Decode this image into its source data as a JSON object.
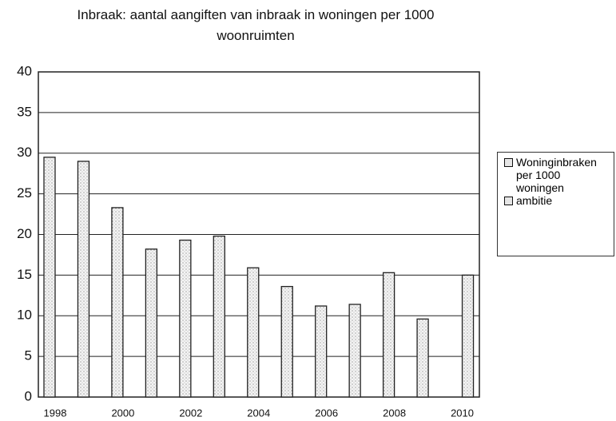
{
  "chart_data": {
    "type": "bar",
    "title": "Inbraak: aantal aangiften van inbraak in woningen per 1000 woonruimten",
    "categories": [
      "1998",
      null,
      "2000",
      null,
      "2002",
      null,
      "2004",
      null,
      "2006",
      null,
      "2008",
      null,
      "2010"
    ],
    "series": [
      {
        "name": "Woninginbraken per 1000 woningen",
        "color": "#e6e6e6",
        "values": [
          29.5,
          29,
          23.3,
          18.2,
          19.3,
          19.8,
          15.9,
          13.6,
          11.2,
          11.4,
          15.3,
          9.6,
          null
        ]
      },
      {
        "name": "ambitie",
        "color": "#e6e6e6",
        "values": [
          null,
          null,
          null,
          null,
          null,
          null,
          null,
          null,
          null,
          null,
          null,
          null,
          15
        ]
      }
    ],
    "ylim": [
      0,
      40
    ],
    "yticks": [
      0,
      5,
      10,
      15,
      20,
      25,
      30,
      35,
      40
    ],
    "grid": true,
    "legend": "right"
  }
}
